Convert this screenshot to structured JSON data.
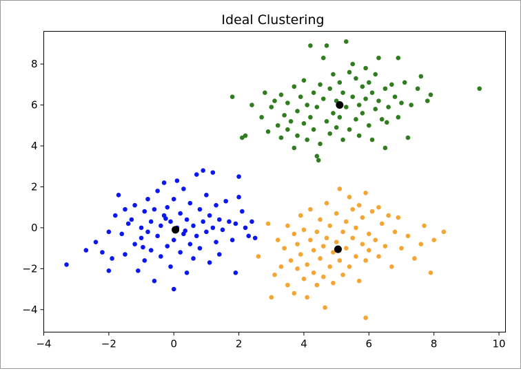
{
  "chart_data": {
    "type": "scatter",
    "title": "Ideal Clustering",
    "xlabel": "",
    "ylabel": "",
    "xlim": [
      -4,
      10.2
    ],
    "ylim": [
      -5.1,
      9.6
    ],
    "xticks": [
      -4,
      -2,
      0,
      2,
      4,
      6,
      8,
      10
    ],
    "yticks": [
      -4,
      -2,
      0,
      2,
      4,
      6,
      8
    ],
    "grid": false,
    "series": [
      {
        "color": "#0a17f0",
        "points": [
          [
            -3.3,
            -1.8
          ],
          [
            -2.7,
            -1.1
          ],
          [
            -2.4,
            -0.7
          ],
          [
            -2.2,
            -1.2
          ],
          [
            -2.0,
            -2.1
          ],
          [
            -2.0,
            -0.2
          ],
          [
            -1.9,
            -1.5
          ],
          [
            -1.8,
            0.6
          ],
          [
            -1.7,
            1.6
          ],
          [
            -1.6,
            -0.3
          ],
          [
            -1.5,
            -1.3
          ],
          [
            -1.4,
            0.2
          ],
          [
            -1.3,
            0.4
          ],
          [
            -1.2,
            -0.8
          ],
          [
            -1.2,
            1.1
          ],
          [
            -1.1,
            -2.1
          ],
          [
            -1.0,
            0.0
          ],
          [
            -1.0,
            -0.5
          ],
          [
            -0.9,
            0.8
          ],
          [
            -0.9,
            -1.6
          ],
          [
            -0.8,
            -0.2
          ],
          [
            -0.8,
            1.4
          ],
          [
            -0.7,
            0.3
          ],
          [
            -0.7,
            -1.1
          ],
          [
            -0.6,
            -2.6
          ],
          [
            -0.6,
            0.9
          ],
          [
            -0.5,
            -0.4
          ],
          [
            -0.5,
            1.8
          ],
          [
            -0.4,
            0.1
          ],
          [
            -0.4,
            -1.4
          ],
          [
            -0.3,
            0.6
          ],
          [
            -0.3,
            2.2
          ],
          [
            -0.2,
            -0.9
          ],
          [
            -0.2,
            1.0
          ],
          [
            -0.1,
            -1.9
          ],
          [
            -0.1,
            0.3
          ],
          [
            0.0,
            -0.6
          ],
          [
            0.0,
            1.4
          ],
          [
            0.0,
            -3.0
          ],
          [
            0.1,
            0.0
          ],
          [
            0.1,
            2.3
          ],
          [
            0.2,
            -1.2
          ],
          [
            0.2,
            0.7
          ],
          [
            0.3,
            -0.3
          ],
          [
            0.3,
            1.9
          ],
          [
            0.4,
            -2.2
          ],
          [
            0.4,
            0.4
          ],
          [
            0.5,
            -0.8
          ],
          [
            0.5,
            1.2
          ],
          [
            0.6,
            0.1
          ],
          [
            0.6,
            -1.5
          ],
          [
            0.7,
            2.6
          ],
          [
            0.7,
            -0.4
          ],
          [
            0.8,
            0.9
          ],
          [
            0.8,
            -1.0
          ],
          [
            0.9,
            2.8
          ],
          [
            0.9,
            0.3
          ],
          [
            1.0,
            -0.2
          ],
          [
            1.0,
            1.6
          ],
          [
            1.1,
            -1.7
          ],
          [
            1.1,
            0.6
          ],
          [
            1.2,
            0.0
          ],
          [
            1.2,
            2.7
          ],
          [
            1.3,
            -0.7
          ],
          [
            1.3,
            1.1
          ],
          [
            1.4,
            0.4
          ],
          [
            1.4,
            -1.3
          ],
          [
            1.5,
            -0.1
          ],
          [
            1.6,
            1.3
          ],
          [
            1.7,
            0.3
          ],
          [
            1.8,
            -0.6
          ],
          [
            1.9,
            0.2
          ],
          [
            1.9,
            -2.2
          ],
          [
            2.0,
            2.5
          ],
          [
            2.0,
            1.5
          ],
          [
            2.1,
            0.8
          ],
          [
            2.2,
            0.0
          ],
          [
            2.3,
            -0.4
          ],
          [
            2.4,
            0.3
          ],
          [
            2.5,
            -0.5
          ],
          [
            -1.5,
            0.9
          ],
          [
            -0.95,
            -0.95
          ],
          [
            0.35,
            -0.15
          ],
          [
            -0.25,
            0.45
          ]
        ]
      },
      {
        "color": "#2f7d1e",
        "points": [
          [
            1.8,
            6.4
          ],
          [
            2.1,
            4.4
          ],
          [
            2.2,
            4.5
          ],
          [
            2.4,
            6.0
          ],
          [
            2.7,
            5.4
          ],
          [
            2.8,
            6.6
          ],
          [
            2.9,
            4.7
          ],
          [
            3.0,
            5.9
          ],
          [
            3.1,
            6.2
          ],
          [
            3.2,
            5.0
          ],
          [
            3.3,
            4.4
          ],
          [
            3.3,
            6.5
          ],
          [
            3.4,
            5.5
          ],
          [
            3.5,
            4.8
          ],
          [
            3.5,
            6.1
          ],
          [
            3.6,
            5.2
          ],
          [
            3.7,
            3.9
          ],
          [
            3.7,
            6.9
          ],
          [
            3.8,
            5.7
          ],
          [
            3.8,
            4.5
          ],
          [
            3.9,
            6.4
          ],
          [
            4.0,
            5.1
          ],
          [
            4.0,
            7.2
          ],
          [
            4.1,
            4.3
          ],
          [
            4.1,
            6.0
          ],
          [
            4.2,
            5.4
          ],
          [
            4.2,
            8.9
          ],
          [
            4.3,
            6.6
          ],
          [
            4.3,
            4.8
          ],
          [
            4.4,
            3.5
          ],
          [
            4.4,
            5.9
          ],
          [
            4.5,
            7.0
          ],
          [
            4.5,
            4.1
          ],
          [
            4.6,
            6.3
          ],
          [
            4.6,
            8.3
          ],
          [
            4.7,
            5.2
          ],
          [
            4.7,
            8.9
          ],
          [
            4.8,
            6.8
          ],
          [
            4.8,
            4.6
          ],
          [
            4.9,
            5.6
          ],
          [
            4.9,
            7.5
          ],
          [
            5.0,
            6.2
          ],
          [
            5.0,
            4.9
          ],
          [
            5.1,
            7.1
          ],
          [
            5.1,
            5.4
          ],
          [
            5.2,
            6.6
          ],
          [
            5.2,
            4.3
          ],
          [
            5.3,
            9.1
          ],
          [
            5.3,
            5.9
          ],
          [
            5.4,
            7.6
          ],
          [
            5.4,
            4.8
          ],
          [
            5.5,
            6.4
          ],
          [
            5.5,
            8.0
          ],
          [
            5.6,
            5.3
          ],
          [
            5.6,
            7.3
          ],
          [
            5.7,
            6.0
          ],
          [
            5.7,
            4.5
          ],
          [
            5.8,
            6.9
          ],
          [
            5.8,
            5.6
          ],
          [
            5.9,
            7.8
          ],
          [
            5.9,
            6.3
          ],
          [
            6.0,
            5.0
          ],
          [
            6.0,
            7.1
          ],
          [
            6.1,
            6.6
          ],
          [
            6.1,
            4.3
          ],
          [
            6.2,
            5.8
          ],
          [
            6.2,
            7.5
          ],
          [
            6.3,
            8.3
          ],
          [
            6.3,
            6.2
          ],
          [
            6.4,
            5.3
          ],
          [
            6.5,
            6.8
          ],
          [
            6.5,
            3.9
          ],
          [
            6.6,
            5.9
          ],
          [
            6.7,
            7.0
          ],
          [
            6.8,
            6.4
          ],
          [
            6.9,
            8.3
          ],
          [
            6.9,
            5.4
          ],
          [
            7.0,
            6.1
          ],
          [
            7.1,
            7.1
          ],
          [
            7.2,
            4.4
          ],
          [
            7.3,
            6.0
          ],
          [
            7.5,
            6.8
          ],
          [
            7.6,
            7.4
          ],
          [
            7.8,
            6.2
          ],
          [
            7.9,
            6.5
          ],
          [
            9.4,
            6.8
          ],
          [
            4.45,
            3.3
          ],
          [
            6.55,
            5.15
          ]
        ]
      },
      {
        "color": "#f5a531",
        "points": [
          [
            2.6,
            -1.4
          ],
          [
            2.9,
            0.2
          ],
          [
            3.0,
            -3.4
          ],
          [
            3.1,
            -2.3
          ],
          [
            3.2,
            -0.6
          ],
          [
            3.3,
            -1.9
          ],
          [
            3.4,
            -1.0
          ],
          [
            3.5,
            -2.8
          ],
          [
            3.5,
            0.1
          ],
          [
            3.6,
            -1.6
          ],
          [
            3.7,
            -0.3
          ],
          [
            3.7,
            -3.2
          ],
          [
            3.8,
            -2.0
          ],
          [
            3.8,
            -0.8
          ],
          [
            3.9,
            -1.3
          ],
          [
            3.9,
            0.6
          ],
          [
            4.0,
            -2.5
          ],
          [
            4.0,
            -0.1
          ],
          [
            4.1,
            -1.8
          ],
          [
            4.1,
            -3.4
          ],
          [
            4.2,
            -0.6
          ],
          [
            4.2,
            0.9
          ],
          [
            4.3,
            -2.2
          ],
          [
            4.3,
            -1.1
          ],
          [
            4.4,
            -0.2
          ],
          [
            4.4,
            -2.8
          ],
          [
            4.5,
            0.4
          ],
          [
            4.5,
            -1.5
          ],
          [
            4.6,
            -0.9
          ],
          [
            4.6,
            -2.4
          ],
          [
            4.7,
            1.2
          ],
          [
            4.7,
            -0.5
          ],
          [
            4.8,
            -1.9
          ],
          [
            4.8,
            0.1
          ],
          [
            4.9,
            -1.2
          ],
          [
            4.9,
            -2.7
          ],
          [
            5.0,
            0.7
          ],
          [
            5.0,
            -0.7
          ],
          [
            5.1,
            -1.6
          ],
          [
            5.1,
            1.9
          ],
          [
            5.2,
            -0.2
          ],
          [
            5.2,
            -2.3
          ],
          [
            5.3,
            0.3
          ],
          [
            5.3,
            -1.0
          ],
          [
            5.4,
            1.5
          ],
          [
            5.4,
            -1.9
          ],
          [
            5.5,
            -0.5
          ],
          [
            5.5,
            0.9
          ],
          [
            5.6,
            -1.4
          ],
          [
            5.6,
            0.0
          ],
          [
            5.7,
            -2.6
          ],
          [
            5.7,
            1.1
          ],
          [
            5.8,
            -0.8
          ],
          [
            5.8,
            0.5
          ],
          [
            5.9,
            -1.6
          ],
          [
            5.9,
            1.7
          ],
          [
            6.0,
            -0.3
          ],
          [
            6.0,
            -1.1
          ],
          [
            6.1,
            0.8
          ],
          [
            6.2,
            -0.6
          ],
          [
            6.3,
            1.0
          ],
          [
            6.3,
            -1.4
          ],
          [
            6.4,
            0.2
          ],
          [
            6.5,
            -0.9
          ],
          [
            6.6,
            0.6
          ],
          [
            6.7,
            -1.9
          ],
          [
            6.8,
            -0.2
          ],
          [
            6.9,
            0.5
          ],
          [
            7.0,
            -1.0
          ],
          [
            7.2,
            -0.4
          ],
          [
            7.4,
            -1.5
          ],
          [
            7.6,
            -0.8
          ],
          [
            7.7,
            0.1
          ],
          [
            7.9,
            -2.2
          ],
          [
            8.0,
            -0.6
          ],
          [
            8.3,
            -0.2
          ],
          [
            5.9,
            -4.4
          ],
          [
            4.65,
            -3.9
          ]
        ]
      },
      {
        "color": "#000000",
        "points": [
          [
            0.05,
            -0.1
          ],
          [
            5.1,
            6.0
          ],
          [
            5.05,
            -1.05
          ]
        ]
      }
    ]
  }
}
